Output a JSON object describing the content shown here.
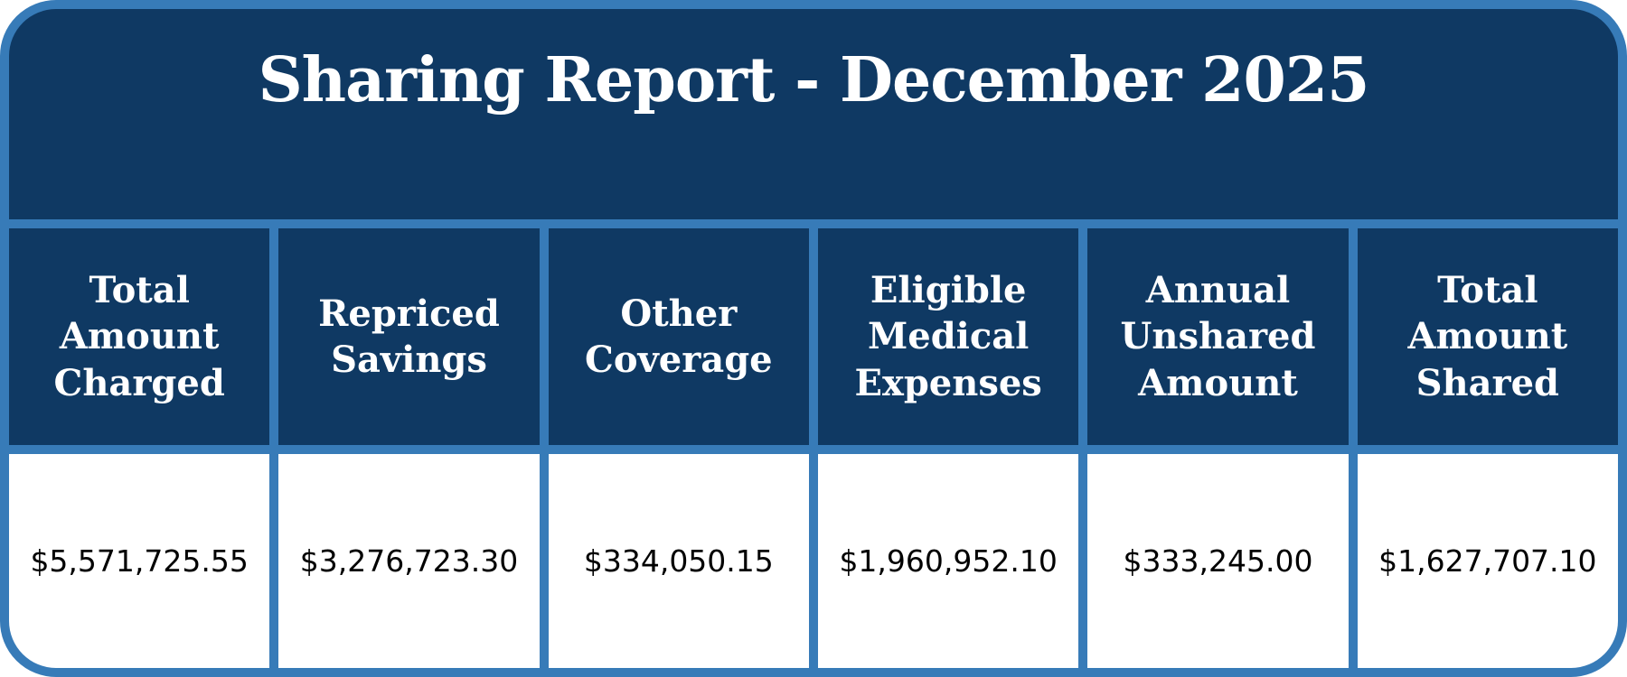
{
  "report": {
    "title": "Sharing Report - December 2025",
    "columns": [
      {
        "label": "Total Amount Charged",
        "value": "$5,571,725.55"
      },
      {
        "label": "Repriced Savings",
        "value": "$3,276,723.30"
      },
      {
        "label": "Other Coverage",
        "value": "$334,050.15"
      },
      {
        "label": "Eligible Medical Expenses",
        "value": "$1,960,952.10"
      },
      {
        "label": "Annual Unshared Amount",
        "value": "$333,245.00"
      },
      {
        "label": "Total Amount Shared",
        "value": "$1,627,707.10"
      }
    ]
  },
  "colors": {
    "navy": "#0F3963",
    "border_blue": "#377BB8",
    "header_text": "#FFFFFF",
    "value_text": "#000000",
    "value_cell_bg": "#FFFFFF"
  },
  "chart_data": {
    "type": "table",
    "title": "Sharing Report - December 2025",
    "categories": [
      "Total Amount Charged",
      "Repriced Savings",
      "Other Coverage",
      "Eligible Medical Expenses",
      "Annual Unshared Amount",
      "Total Amount Shared"
    ],
    "values": [
      5571725.55,
      3276723.3,
      334050.15,
      1960952.1,
      333245.0,
      1627707.1
    ],
    "values_formatted": [
      "$5,571,725.55",
      "$3,276,723.30",
      "$334,050.15",
      "$1,960,952.10",
      "$333,245.00",
      "$1,627,707.10"
    ]
  }
}
